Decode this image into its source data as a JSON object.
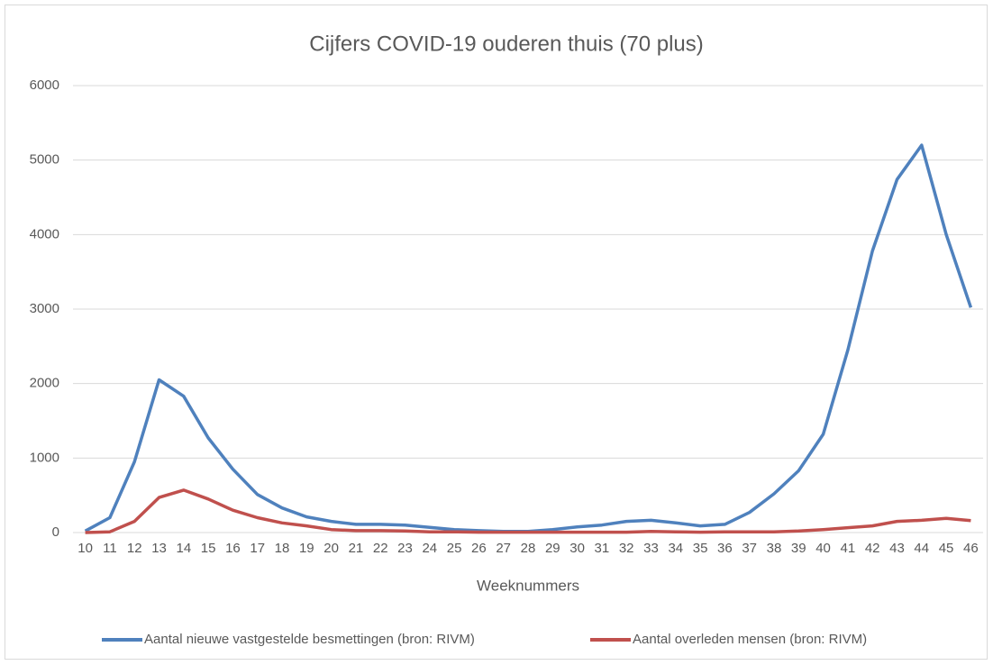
{
  "chart_data": {
    "type": "line",
    "title": "Cijfers COVID-19 ouderen thuis (70 plus)",
    "x_label": "Weeknummers",
    "categories": [
      "10",
      "11",
      "12",
      "13",
      "14",
      "15",
      "16",
      "17",
      "18",
      "19",
      "20",
      "21",
      "22",
      "23",
      "24",
      "25",
      "26",
      "27",
      "28",
      "29",
      "30",
      "31",
      "32",
      "33",
      "34",
      "35",
      "36",
      "37",
      "38",
      "39",
      "40",
      "41",
      "42",
      "43",
      "44",
      "45",
      "46"
    ],
    "series": [
      {
        "name": "Aantal nieuwe vastgestelde besmettingen (bron: RIVM)",
        "color": "#4f81bd",
        "values": [
          20,
          200,
          950,
          2050,
          1830,
          1270,
          850,
          510,
          330,
          210,
          150,
          110,
          110,
          100,
          70,
          40,
          25,
          15,
          15,
          40,
          75,
          100,
          150,
          165,
          130,
          90,
          110,
          270,
          520,
          830,
          1320,
          2450,
          3780,
          4740,
          5200,
          4000,
          3020
        ]
      },
      {
        "name": "Aantal overleden mensen (bron: RIVM)",
        "color": "#c0504d",
        "values": [
          0,
          10,
          150,
          470,
          570,
          450,
          300,
          200,
          130,
          90,
          40,
          25,
          25,
          20,
          10,
          10,
          5,
          5,
          5,
          5,
          5,
          5,
          5,
          15,
          10,
          5,
          10,
          10,
          10,
          20,
          40,
          65,
          90,
          150,
          165,
          190,
          160
        ]
      }
    ],
    "ylim": [
      0,
      6000
    ],
    "yticks": [
      0,
      1000,
      2000,
      3000,
      4000,
      5000,
      6000
    ],
    "grid": true,
    "legend": "bottom"
  }
}
